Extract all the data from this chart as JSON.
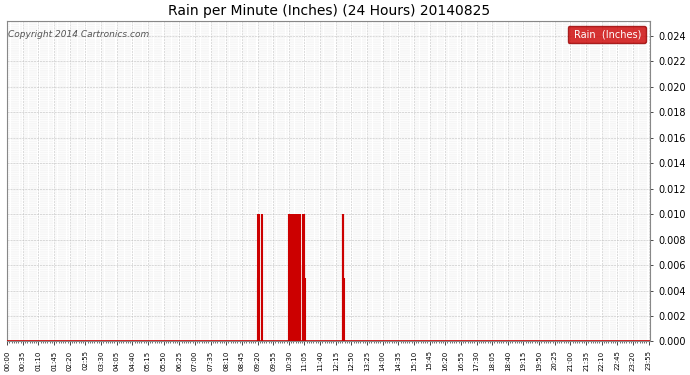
{
  "title": "Rain per Minute (Inches) (24 Hours) 20140825",
  "copyright_text": "Copyright 2014 Cartronics.com",
  "legend_label": "Rain  (Inches)",
  "legend_bg": "#cc0000",
  "legend_text_color": "#ffffff",
  "line_color": "#cc0000",
  "background_color": "#ffffff",
  "grid_color": "#bbbbbb",
  "ylim": [
    0,
    0.0252
  ],
  "yticks": [
    0.0,
    0.002,
    0.004,
    0.006,
    0.008,
    0.01,
    0.012,
    0.014,
    0.016,
    0.018,
    0.02,
    0.022,
    0.024
  ],
  "rain_events": [
    {
      "minute": 561,
      "value": 0.01
    },
    {
      "minute": 562,
      "value": 0.005
    },
    {
      "minute": 563,
      "value": 0.01
    },
    {
      "minute": 571,
      "value": 0.01
    },
    {
      "minute": 631,
      "value": 0.01
    },
    {
      "minute": 632,
      "value": 0.006
    },
    {
      "minute": 636,
      "value": 0.01
    },
    {
      "minute": 637,
      "value": 0.006
    },
    {
      "minute": 638,
      "value": 0.006
    },
    {
      "minute": 639,
      "value": 0.01
    },
    {
      "minute": 640,
      "value": 0.006
    },
    {
      "minute": 641,
      "value": 0.006
    },
    {
      "minute": 642,
      "value": 0.01
    },
    {
      "minute": 643,
      "value": 0.006
    },
    {
      "minute": 644,
      "value": 0.006
    },
    {
      "minute": 645,
      "value": 0.01
    },
    {
      "minute": 646,
      "value": 0.006
    },
    {
      "minute": 647,
      "value": 0.006
    },
    {
      "minute": 648,
      "value": 0.01
    },
    {
      "minute": 649,
      "value": 0.006
    },
    {
      "minute": 650,
      "value": 0.006
    },
    {
      "minute": 651,
      "value": 0.01
    },
    {
      "minute": 652,
      "value": 0.006
    },
    {
      "minute": 653,
      "value": 0.006
    },
    {
      "minute": 654,
      "value": 0.01
    },
    {
      "minute": 655,
      "value": 0.006
    },
    {
      "minute": 661,
      "value": 0.01
    },
    {
      "minute": 662,
      "value": 0.006
    },
    {
      "minute": 663,
      "value": 0.01
    },
    {
      "minute": 664,
      "value": 0.006
    },
    {
      "minute": 665,
      "value": 0.01
    },
    {
      "minute": 666,
      "value": 0.005
    },
    {
      "minute": 751,
      "value": 0.01
    },
    {
      "minute": 752,
      "value": 0.01
    },
    {
      "minute": 753,
      "value": 0.005
    }
  ],
  "xlabel_interval_minutes": 35,
  "minor_tick_interval": 5,
  "title_fontsize": 10,
  "tick_fontsize": 5,
  "ylabel_fontsize": 7
}
